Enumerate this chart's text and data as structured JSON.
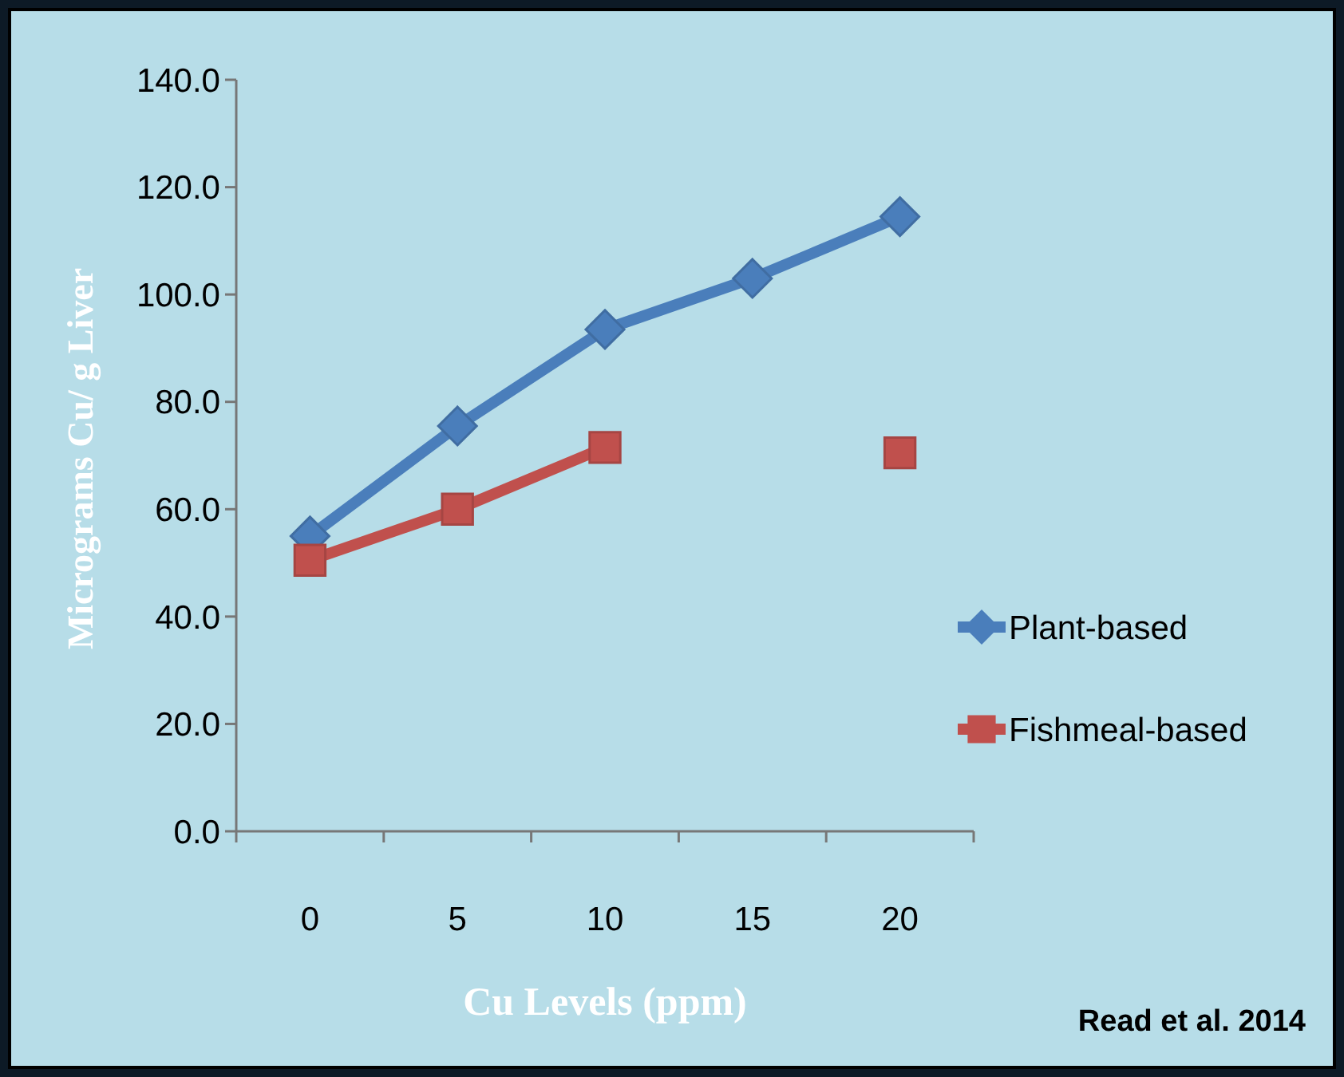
{
  "chart_data": {
    "type": "line",
    "xlabel": "Cu Levels (ppm)",
    "ylabel": "Micrograms Cu/ g Liver",
    "categories": [
      "0",
      "5",
      "10",
      "15",
      "20"
    ],
    "series": [
      {
        "name": "Plant-based",
        "color": "#4a7ebb",
        "marker": "diamond",
        "values": [
          55,
          75.5,
          93.5,
          103,
          114.5
        ]
      },
      {
        "name": "Fishmeal-based",
        "color": "#c0504d",
        "marker": "square",
        "values": [
          50.5,
          60,
          71.5,
          null,
          70.5
        ]
      }
    ],
    "ylim": [
      0,
      140
    ],
    "yticks": [
      {
        "value": 0,
        "label": "0.0"
      },
      {
        "value": 20,
        "label": "20.0"
      },
      {
        "value": 40,
        "label": "40.0"
      },
      {
        "value": 60,
        "label": "60.0"
      },
      {
        "value": 80,
        "label": "80.0"
      },
      {
        "value": 100,
        "label": "100.0"
      },
      {
        "value": 120,
        "label": "120.0"
      },
      {
        "value": 140,
        "label": "140.0"
      }
    ],
    "grid": false,
    "legend": "right",
    "line_style": "solid",
    "annotations": [
      "Read et al.  2014"
    ]
  }
}
